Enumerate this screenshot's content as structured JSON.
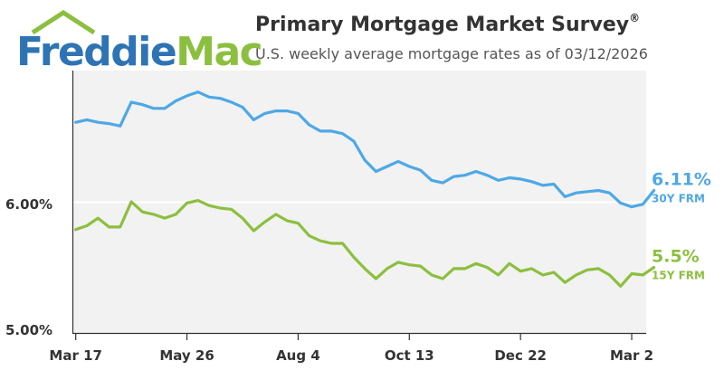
{
  "logo": {
    "freddie": "Freddie",
    "mac": "Mac"
  },
  "header": {
    "title": "Primary Mortgage Market Survey",
    "title_mark": "®",
    "subtitle": "U.S. weekly average mortgage rates as of 03/12/2026"
  },
  "colors": {
    "blue": "#4ea8e6",
    "green": "#8cbf3f",
    "brand_blue": "#2e74b5"
  },
  "chart_data": {
    "type": "line",
    "title": "Primary Mortgage Market Survey",
    "subtitle": "U.S. weekly average mortgage rates as of 03/12/2026",
    "y_ticks": [
      {
        "value": 6.0,
        "label": "6.00%"
      },
      {
        "value": 5.0,
        "label": "5.00%"
      }
    ],
    "x_ticks": [
      {
        "index": 0,
        "label": "Mar 17"
      },
      {
        "index": 10,
        "label": "May 26"
      },
      {
        "index": 20,
        "label": "Aug 4"
      },
      {
        "index": 30,
        "label": "Oct 13"
      },
      {
        "index": 40,
        "label": "Dec 22"
      },
      {
        "index": 50,
        "label": "Mar 2"
      }
    ],
    "ylim": [
      4.98,
      7.06
    ],
    "xlim": [
      -0.3,
      51.3
    ],
    "grid": "horizontal line at 6.00%",
    "series": [
      {
        "name": "30Y FRM",
        "end_label": "6.11%",
        "color": "#4ea8e6",
        "values": [
          6.65,
          6.67,
          6.65,
          6.64,
          6.62,
          6.81,
          6.79,
          6.76,
          6.76,
          6.82,
          6.86,
          6.89,
          6.85,
          6.84,
          6.81,
          6.77,
          6.67,
          6.72,
          6.74,
          6.74,
          6.72,
          6.63,
          6.58,
          6.58,
          6.56,
          6.5,
          6.35,
          6.26,
          6.3,
          6.34,
          6.3,
          6.27,
          6.19,
          6.17,
          6.22,
          6.23,
          6.26,
          6.23,
          6.19,
          6.21,
          6.2,
          6.18,
          6.15,
          6.16,
          6.06,
          6.09,
          6.1,
          6.11,
          6.09,
          6.01,
          5.98,
          6.0,
          6.11
        ]
      },
      {
        "name": "15Y FRM",
        "end_label": "5.5%",
        "color": "#8cbf3f",
        "values": [
          5.8,
          5.83,
          5.89,
          5.82,
          5.82,
          6.02,
          5.94,
          5.92,
          5.89,
          5.92,
          6.01,
          6.03,
          5.99,
          5.97,
          5.96,
          5.89,
          5.79,
          5.86,
          5.92,
          5.87,
          5.85,
          5.75,
          5.71,
          5.69,
          5.69,
          5.58,
          5.49,
          5.41,
          5.49,
          5.54,
          5.52,
          5.51,
          5.44,
          5.41,
          5.49,
          5.49,
          5.53,
          5.5,
          5.44,
          5.53,
          5.47,
          5.49,
          5.44,
          5.46,
          5.38,
          5.44,
          5.48,
          5.49,
          5.44,
          5.35,
          5.45,
          5.44,
          5.5
        ]
      }
    ]
  }
}
